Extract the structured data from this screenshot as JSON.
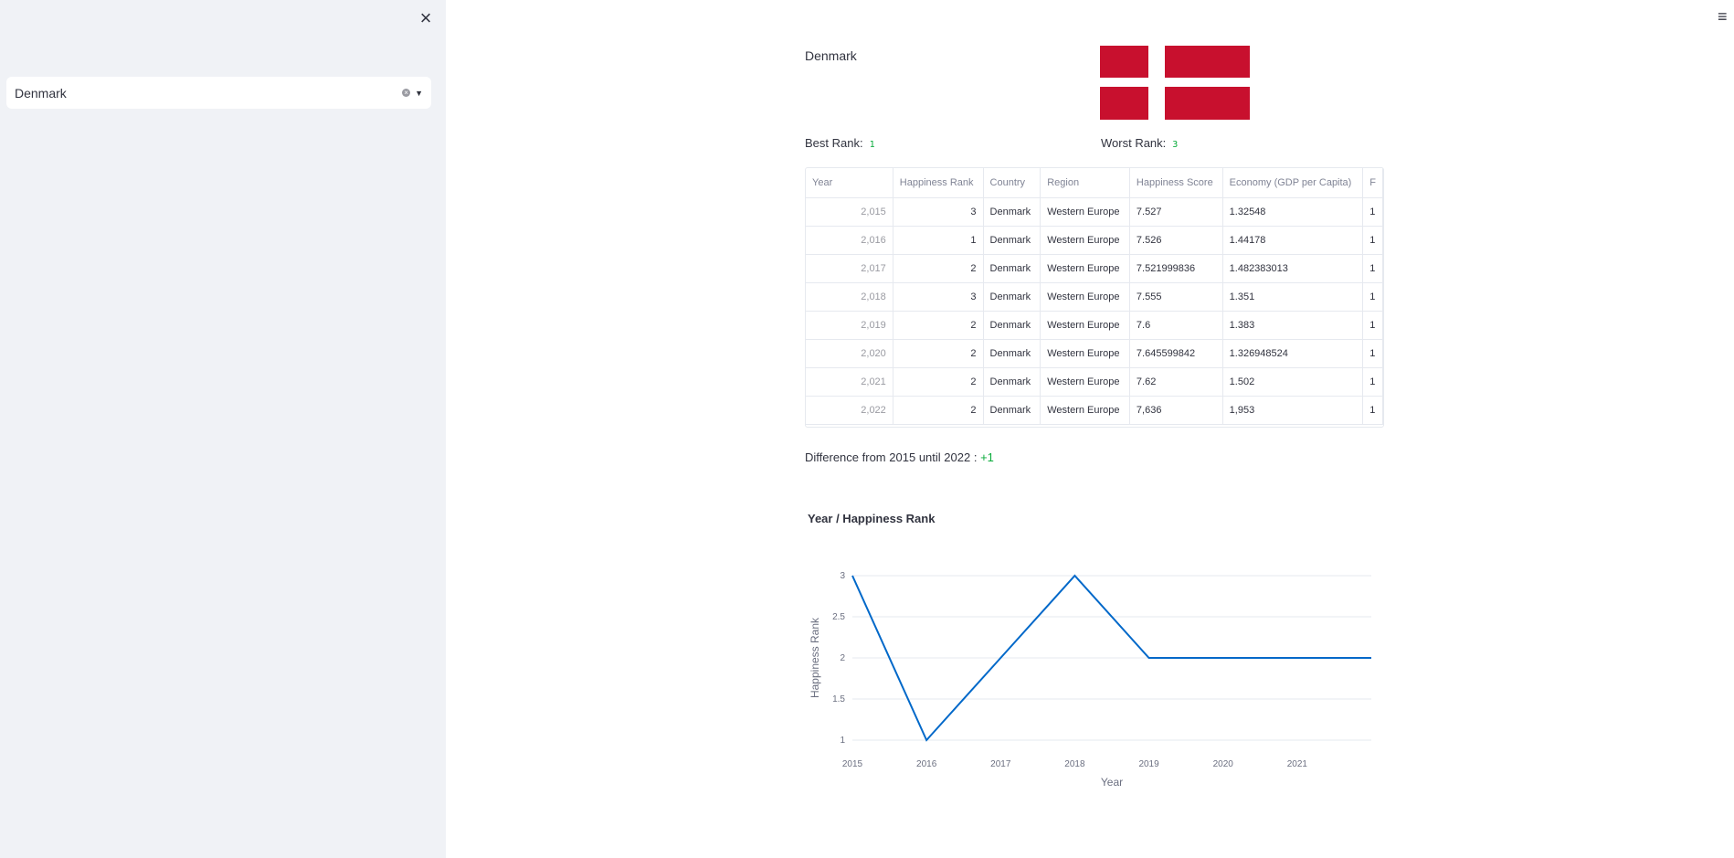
{
  "sidebar": {
    "close_icon": "×",
    "select": {
      "value": "Denmark"
    }
  },
  "header": {
    "menu_icon": "≡"
  },
  "country": {
    "name": "Denmark",
    "flag_colors": {
      "red": "#c8102e",
      "white": "#ffffff"
    }
  },
  "ranks": {
    "best_label": "Best Rank:",
    "best_value": "1",
    "worst_label": "Worst Rank:",
    "worst_value": "3"
  },
  "table": {
    "headers": [
      "Year",
      "Happiness Rank",
      "Country",
      "Region",
      "Happiness Score",
      "Economy (GDP per Capita)",
      "F"
    ],
    "rows": [
      [
        "2,015",
        "3",
        "Denmark",
        "Western Europe",
        "7.527",
        "1.32548",
        "1"
      ],
      [
        "2,016",
        "1",
        "Denmark",
        "Western Europe",
        "7.526",
        "1.44178",
        "1"
      ],
      [
        "2,017",
        "2",
        "Denmark",
        "Western Europe",
        "7.521999836",
        "1.482383013",
        "1"
      ],
      [
        "2,018",
        "3",
        "Denmark",
        "Western Europe",
        "7.555",
        "1.351",
        "1"
      ],
      [
        "2,019",
        "2",
        "Denmark",
        "Western Europe",
        "7.6",
        "1.383",
        "1"
      ],
      [
        "2,020",
        "2",
        "Denmark",
        "Western Europe",
        "7.645599842",
        "1.326948524",
        "1"
      ],
      [
        "2,021",
        "2",
        "Denmark",
        "Western Europe",
        "7.62",
        "1.502",
        "1"
      ],
      [
        "2,022",
        "2",
        "Denmark",
        "Western Europe",
        "7,636",
        "1,953",
        "1"
      ]
    ]
  },
  "difference": {
    "prefix": "Difference from",
    "from": "2015",
    "middle": "until",
    "to": "2022",
    "sep": ":",
    "value": "+1"
  },
  "chart_data": {
    "type": "line",
    "title": "Year / Happiness Rank",
    "xlabel": "Year",
    "ylabel": "Happiness Rank",
    "x": [
      2015,
      2016,
      2017,
      2018,
      2019,
      2020,
      2021,
      2022
    ],
    "y": [
      3,
      1,
      2,
      3,
      2,
      2,
      2,
      2
    ],
    "xlim": [
      2015,
      2022
    ],
    "ylim": [
      1,
      3
    ],
    "x_ticks": [
      "2015",
      "2016",
      "2017",
      "2018",
      "2019",
      "2020",
      "2021"
    ],
    "y_ticks": [
      "1",
      "1.5",
      "2",
      "2.5",
      "3"
    ],
    "line_color": "#0068c9",
    "grid": true
  }
}
